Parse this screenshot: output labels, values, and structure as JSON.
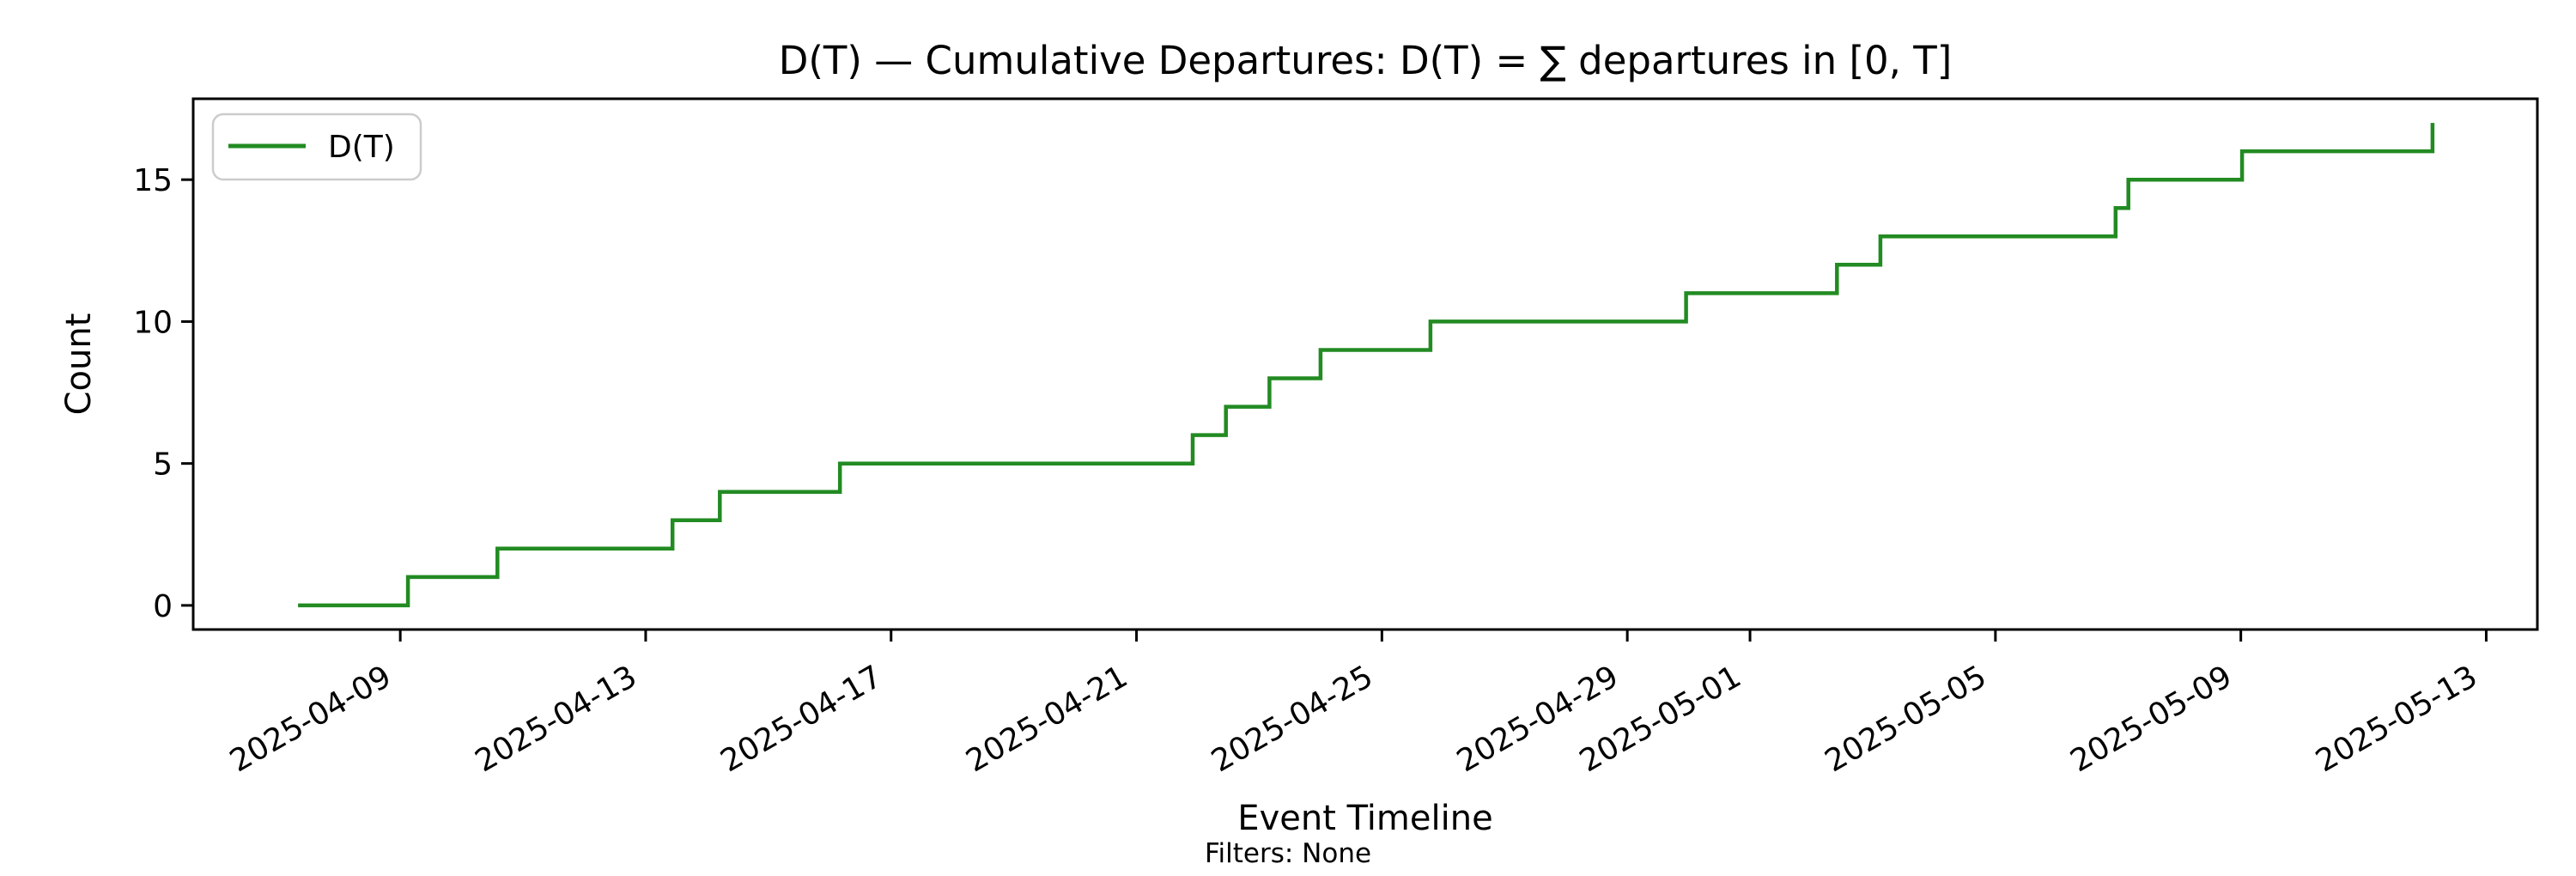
{
  "figure": {
    "background": "#ffffff",
    "text_color": "#000000",
    "legend_border_color": "#cccccc"
  },
  "chart_data": {
    "type": "line",
    "step_mode": "post",
    "title": "D(T) — Cumulative Departures: D(T) = ∑ departures in [0, T]",
    "xlabel": "Event Timeline",
    "ylabel": "Count",
    "caption": "Filters: None",
    "grid": false,
    "line_color": "#228B22",
    "legend": {
      "position": "upper left",
      "entries": [
        {
          "label": "D(T)",
          "color": "#228B22"
        }
      ]
    },
    "ylim": [
      -0.85,
      17.85
    ],
    "xlim": [
      "2025-04-05T15:00:00",
      "2025-05-13T20:00:00"
    ],
    "y_ticks": [
      0,
      5,
      10,
      15
    ],
    "x_ticks": [
      "2025-04-09",
      "2025-04-13",
      "2025-04-17",
      "2025-04-21",
      "2025-04-25",
      "2025-04-29",
      "2025-05-01",
      "2025-05-05",
      "2025-05-09",
      "2025-05-13"
    ],
    "series_start": {
      "t": "2025-04-07T08:00:00",
      "count": 0
    },
    "events": [
      {
        "t": "2025-04-09T03:00:00",
        "count": 1
      },
      {
        "t": "2025-04-10T14:00:00",
        "count": 2
      },
      {
        "t": "2025-04-13T10:30:00",
        "count": 3
      },
      {
        "t": "2025-04-14T05:00:00",
        "count": 4
      },
      {
        "t": "2025-04-16T04:00:00",
        "count": 5
      },
      {
        "t": "2025-04-21T22:00:00",
        "count": 6
      },
      {
        "t": "2025-04-22T11:00:00",
        "count": 7
      },
      {
        "t": "2025-04-23T04:00:00",
        "count": 8
      },
      {
        "t": "2025-04-24T00:00:00",
        "count": 9
      },
      {
        "t": "2025-04-25T19:00:00",
        "count": 10
      },
      {
        "t": "2025-04-29T23:00:00",
        "count": 11
      },
      {
        "t": "2025-05-02T10:00:00",
        "count": 12
      },
      {
        "t": "2025-05-03T03:00:00",
        "count": 13
      },
      {
        "t": "2025-05-06T23:00:00",
        "count": 14
      },
      {
        "t": "2025-05-07T04:00:00",
        "count": 15
      },
      {
        "t": "2025-05-09T00:30:00",
        "count": 16
      },
      {
        "t": "2025-05-12T03:00:00",
        "count": 17
      }
    ]
  }
}
